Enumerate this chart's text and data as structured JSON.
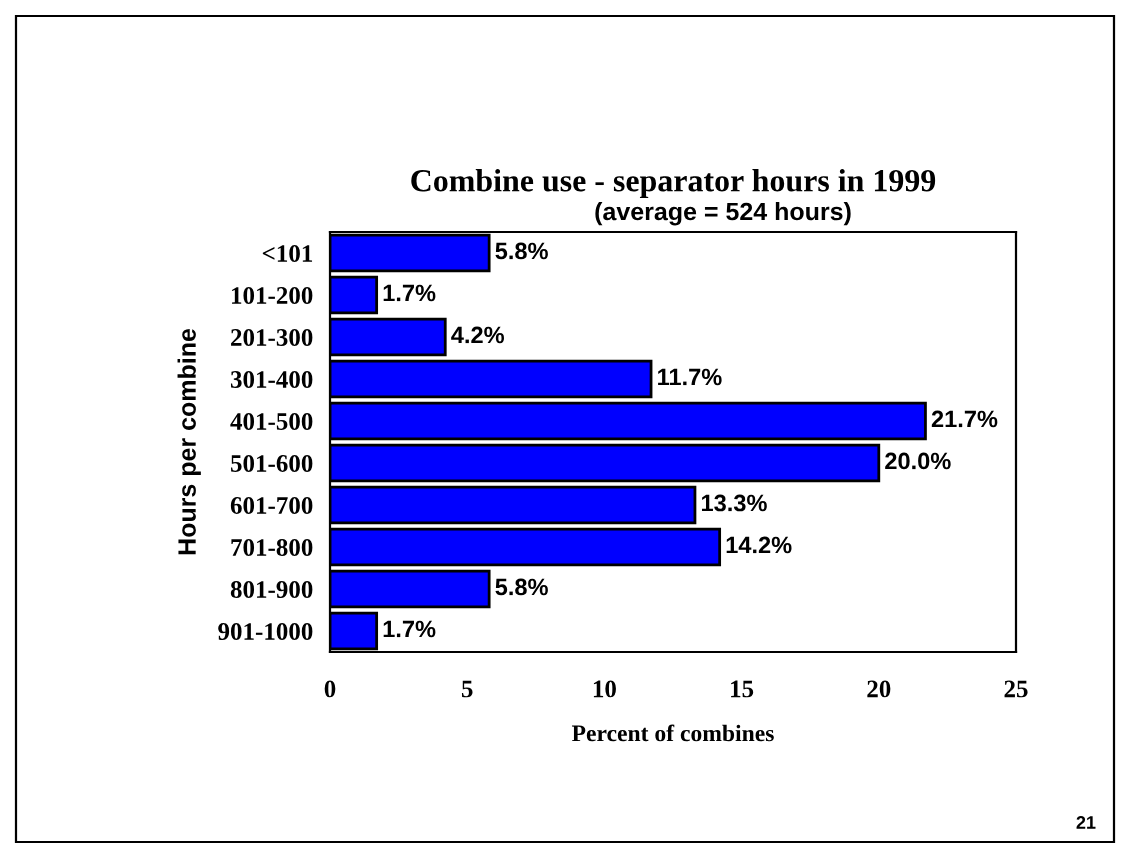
{
  "chart_data": {
    "type": "bar",
    "orientation": "horizontal",
    "title": "Combine use - separator hours in 1999",
    "subtitle": "(average = 524 hours)",
    "xlabel": "Percent of combines",
    "ylabel": "Hours per combine",
    "categories": [
      "<101",
      "101-200",
      "201-300",
      "301-400",
      "401-500",
      "501-600",
      "601-700",
      "701-800",
      "801-900",
      "901-1000"
    ],
    "values": [
      5.8,
      1.7,
      4.2,
      11.7,
      21.7,
      20.0,
      13.3,
      14.2,
      5.8,
      1.7
    ],
    "value_labels": [
      "5.8%",
      "1.7%",
      "4.2%",
      "11.7%",
      "21.7%",
      "20.0%",
      "13.3%",
      "14.2%",
      "5.8%",
      "1.7%"
    ],
    "color": "#0000ff",
    "xlim": [
      0,
      25
    ],
    "xticks": [
      0,
      5,
      10,
      15,
      20,
      25
    ],
    "grid": false,
    "legend": false,
    "annotations": [
      "21"
    ]
  }
}
